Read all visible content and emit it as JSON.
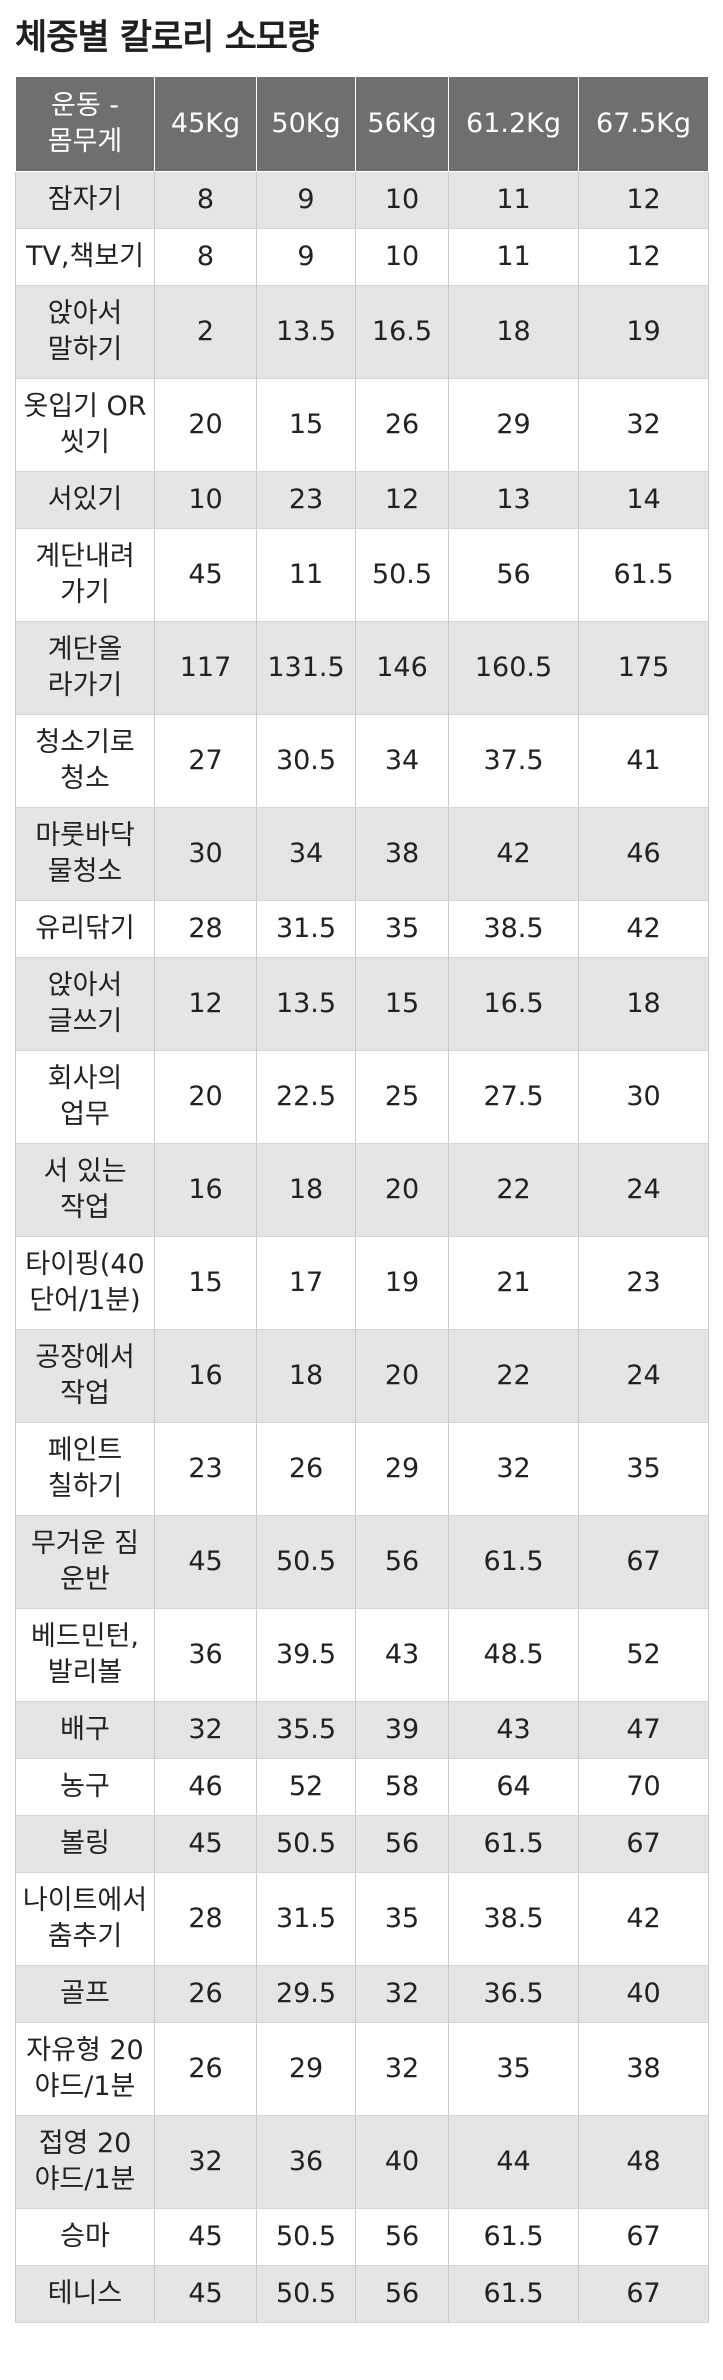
{
  "title": "체중별 칼로리 소모량",
  "table": {
    "headers": [
      "운동 -\n몸무게",
      "45Kg",
      "50Kg",
      "56Kg",
      "61.2Kg",
      "67.5Kg"
    ],
    "rows": [
      {
        "activity": "잠자기",
        "values": [
          "8",
          "9",
          "10",
          "11",
          "12"
        ]
      },
      {
        "activity": "TV,책보기",
        "values": [
          "8",
          "9",
          "10",
          "11",
          "12"
        ]
      },
      {
        "activity": "앉아서\n말하기",
        "values": [
          "2",
          "13.5",
          "16.5",
          "18",
          "19"
        ]
      },
      {
        "activity": "옷입기 OR\n씻기",
        "values": [
          "20",
          "15",
          "26",
          "29",
          "32"
        ]
      },
      {
        "activity": "서있기",
        "values": [
          "10",
          "23",
          "12",
          "13",
          "14"
        ]
      },
      {
        "activity": "계단내려\n가기",
        "values": [
          "45",
          "11",
          "50.5",
          "56",
          "61.5"
        ]
      },
      {
        "activity": "계단올\n라가기",
        "values": [
          "117",
          "131.5",
          "146",
          "160.5",
          "175"
        ]
      },
      {
        "activity": "청소기로\n청소",
        "values": [
          "27",
          "30.5",
          "34",
          "37.5",
          "41"
        ]
      },
      {
        "activity": "마룻바닥\n물청소",
        "values": [
          "30",
          "34",
          "38",
          "42",
          "46"
        ]
      },
      {
        "activity": "유리닦기",
        "values": [
          "28",
          "31.5",
          "35",
          "38.5",
          "42"
        ]
      },
      {
        "activity": "앉아서\n글쓰기",
        "values": [
          "12",
          "13.5",
          "15",
          "16.5",
          "18"
        ]
      },
      {
        "activity": "회사의\n업무",
        "values": [
          "20",
          "22.5",
          "25",
          "27.5",
          "30"
        ]
      },
      {
        "activity": "서 있는\n작업",
        "values": [
          "16",
          "18",
          "20",
          "22",
          "24"
        ]
      },
      {
        "activity": "타이핑(40\n단어/1분)",
        "values": [
          "15",
          "17",
          "19",
          "21",
          "23"
        ]
      },
      {
        "activity": "공장에서\n작업",
        "values": [
          "16",
          "18",
          "20",
          "22",
          "24"
        ]
      },
      {
        "activity": "페인트\n칠하기",
        "values": [
          "23",
          "26",
          "29",
          "32",
          "35"
        ]
      },
      {
        "activity": "무거운 짐\n운반",
        "values": [
          "45",
          "50.5",
          "56",
          "61.5",
          "67"
        ]
      },
      {
        "activity": "베드민턴,\n발리볼",
        "values": [
          "36",
          "39.5",
          "43",
          "48.5",
          "52"
        ]
      },
      {
        "activity": "배구",
        "values": [
          "32",
          "35.5",
          "39",
          "43",
          "47"
        ]
      },
      {
        "activity": "농구",
        "values": [
          "46",
          "52",
          "58",
          "64",
          "70"
        ]
      },
      {
        "activity": "볼링",
        "values": [
          "45",
          "50.5",
          "56",
          "61.5",
          "67"
        ]
      },
      {
        "activity": "나이트에서\n춤추기",
        "values": [
          "28",
          "31.5",
          "35",
          "38.5",
          "42"
        ]
      },
      {
        "activity": "골프",
        "values": [
          "26",
          "29.5",
          "32",
          "36.5",
          "40"
        ]
      },
      {
        "activity": "자유형 20\n야드/1분",
        "values": [
          "26",
          "29",
          "32",
          "35",
          "38"
        ]
      },
      {
        "activity": "접영 20\n야드/1분",
        "values": [
          "32",
          "36",
          "40",
          "44",
          "48"
        ]
      },
      {
        "activity": "승마",
        "values": [
          "45",
          "50.5",
          "56",
          "61.5",
          "67"
        ]
      },
      {
        "activity": "테니스",
        "values": [
          "45",
          "50.5",
          "56",
          "61.5",
          "67"
        ]
      }
    ]
  }
}
